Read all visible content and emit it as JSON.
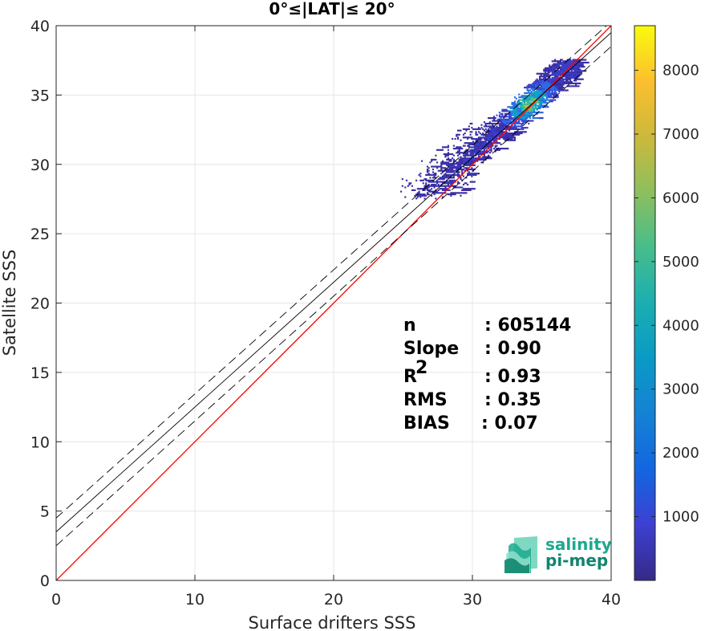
{
  "chart_data": {
    "type": "heatmap",
    "title": "0°≤|LAT|≤ 20°",
    "xlabel": "Surface drifters SSS",
    "ylabel": "Satellite SSS",
    "xlim": [
      0,
      40
    ],
    "ylim": [
      0,
      40
    ],
    "xticks": [
      "0",
      "10",
      "20",
      "30",
      "40"
    ],
    "yticks": [
      "0",
      "5",
      "10",
      "15",
      "20",
      "25",
      "30",
      "35",
      "40"
    ],
    "grid": true,
    "colorbar": {
      "range": [
        0,
        8700
      ],
      "ticks": [
        "1000",
        "2000",
        "3000",
        "4000",
        "5000",
        "6000",
        "7000",
        "8000"
      ],
      "colormap": "parula"
    },
    "reference_lines": [
      {
        "name": "1:1",
        "color": "#ff0000",
        "style": "solid",
        "points": [
          [
            0,
            0
          ],
          [
            40,
            40
          ]
        ]
      },
      {
        "name": "fit",
        "color": "#000000",
        "style": "solid",
        "points": [
          [
            0,
            3.5
          ],
          [
            40,
            39.5
          ]
        ]
      },
      {
        "name": "fit + 1 std",
        "color": "#000000",
        "style": "dashed",
        "points": [
          [
            0,
            4.5
          ],
          [
            40,
            40.3
          ]
        ]
      },
      {
        "name": "fit - 1 std",
        "color": "#000000",
        "style": "dashed",
        "points": [
          [
            0,
            2.5
          ],
          [
            40,
            38.5
          ]
        ]
      }
    ],
    "density_cloud": {
      "description": "2D histogram of collocated points",
      "core": [
        [
          29.5,
          30.5
        ],
        [
          33.5,
          33.8
        ],
        [
          36.5,
          37
        ]
      ],
      "peak": [
        34,
        34.3
      ],
      "x_extent": [
        23,
        37.5
      ],
      "y_extent": [
        27.5,
        37.5
      ]
    },
    "stats": [
      {
        "label": "n",
        "value": ": 605144"
      },
      {
        "label": "Slope",
        "value": ": 0.90"
      },
      {
        "label": "R",
        "sup": "2",
        "value": ": 0.93"
      },
      {
        "label": "RMS",
        "value": ": 0.35"
      },
      {
        "label": "BIAS",
        "value": ": 0.07"
      }
    ]
  },
  "logo": {
    "line1": "salinity",
    "line2": "pi-mep"
  },
  "colors": {
    "ref_line": "#ff0000",
    "logo_teal": "#1ba98e",
    "logo_dark": "#12856e"
  }
}
